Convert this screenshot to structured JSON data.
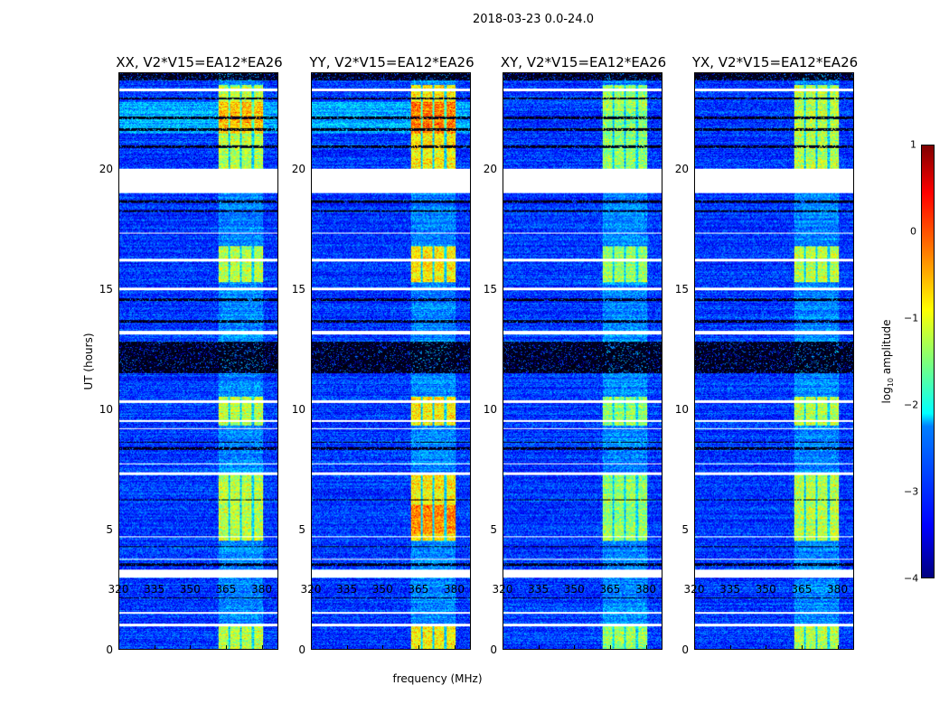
{
  "chart_data": {
    "type": "heatmap",
    "title": "2018-03-23 0.0-24.0",
    "xlabel": "frequency (MHz)",
    "ylabel": "UT (hours)",
    "xlim": [
      320,
      387
    ],
    "ylim": [
      0,
      24
    ],
    "xticks": [
      "320",
      "335",
      "350",
      "365",
      "380"
    ],
    "yticks": [
      "0",
      "5",
      "10",
      "15",
      "20"
    ],
    "panels": [
      {
        "title": "XX, V2*V15=EA12*EA26",
        "rfi_level": -1.2
      },
      {
        "title": "YY, V2*V15=EA12*EA26",
        "rfi_level": -0.8
      },
      {
        "title": "XY, V2*V15=EA12*EA26",
        "rfi_level": -1.4
      },
      {
        "title": "YX, V2*V15=EA12*EA26",
        "rfi_level": -1.2
      }
    ],
    "background_log_amplitude": -3.1,
    "rfi_bands_mhz": [
      [
        362,
        366
      ],
      [
        367,
        371
      ],
      [
        372,
        376
      ],
      [
        377,
        381
      ]
    ],
    "rfi_active_hours": [
      [
        0,
        1
      ],
      [
        4.5,
        7.3
      ],
      [
        15.3,
        16.8
      ],
      [
        20,
        23.5
      ],
      [
        9.3,
        10.5
      ]
    ],
    "flagged_hours": [
      [
        19.0,
        20.0
      ],
      [
        0.95,
        1.05
      ],
      [
        1.45,
        1.55
      ],
      [
        2.95,
        3.3
      ],
      [
        3.7,
        3.75
      ],
      [
        4.65,
        4.7
      ],
      [
        7.25,
        7.35
      ],
      [
        7.7,
        7.75
      ],
      [
        9.15,
        9.2
      ],
      [
        9.45,
        9.55
      ],
      [
        10.25,
        10.35
      ],
      [
        13.1,
        13.25
      ],
      [
        14.95,
        15.05
      ],
      [
        16.15,
        16.25
      ],
      [
        17.3,
        17.35
      ],
      [
        23.25,
        23.35
      ]
    ],
    "dark_rows_hours": [
      [
        2.1,
        2.15
      ],
      [
        3.45,
        3.55
      ],
      [
        4.25,
        4.3
      ],
      [
        6.2,
        6.25
      ],
      [
        8.3,
        8.4
      ],
      [
        8.6,
        8.65
      ],
      [
        11.5,
        12.8
      ],
      [
        13.6,
        13.7
      ],
      [
        14.5,
        14.6
      ],
      [
        18.2,
        18.3
      ],
      [
        18.6,
        18.7
      ],
      [
        20.9,
        21
      ],
      [
        21.6,
        21.7
      ],
      [
        22.1,
        22.2
      ],
      [
        22.9,
        23.0
      ],
      [
        23.7,
        24
      ]
    ],
    "colorbar": {
      "label": "log10 amplitude",
      "range": [
        -4,
        1
      ],
      "ticks": [
        "1",
        "0",
        "−1",
        "−2",
        "−3",
        "−4"
      ]
    }
  }
}
